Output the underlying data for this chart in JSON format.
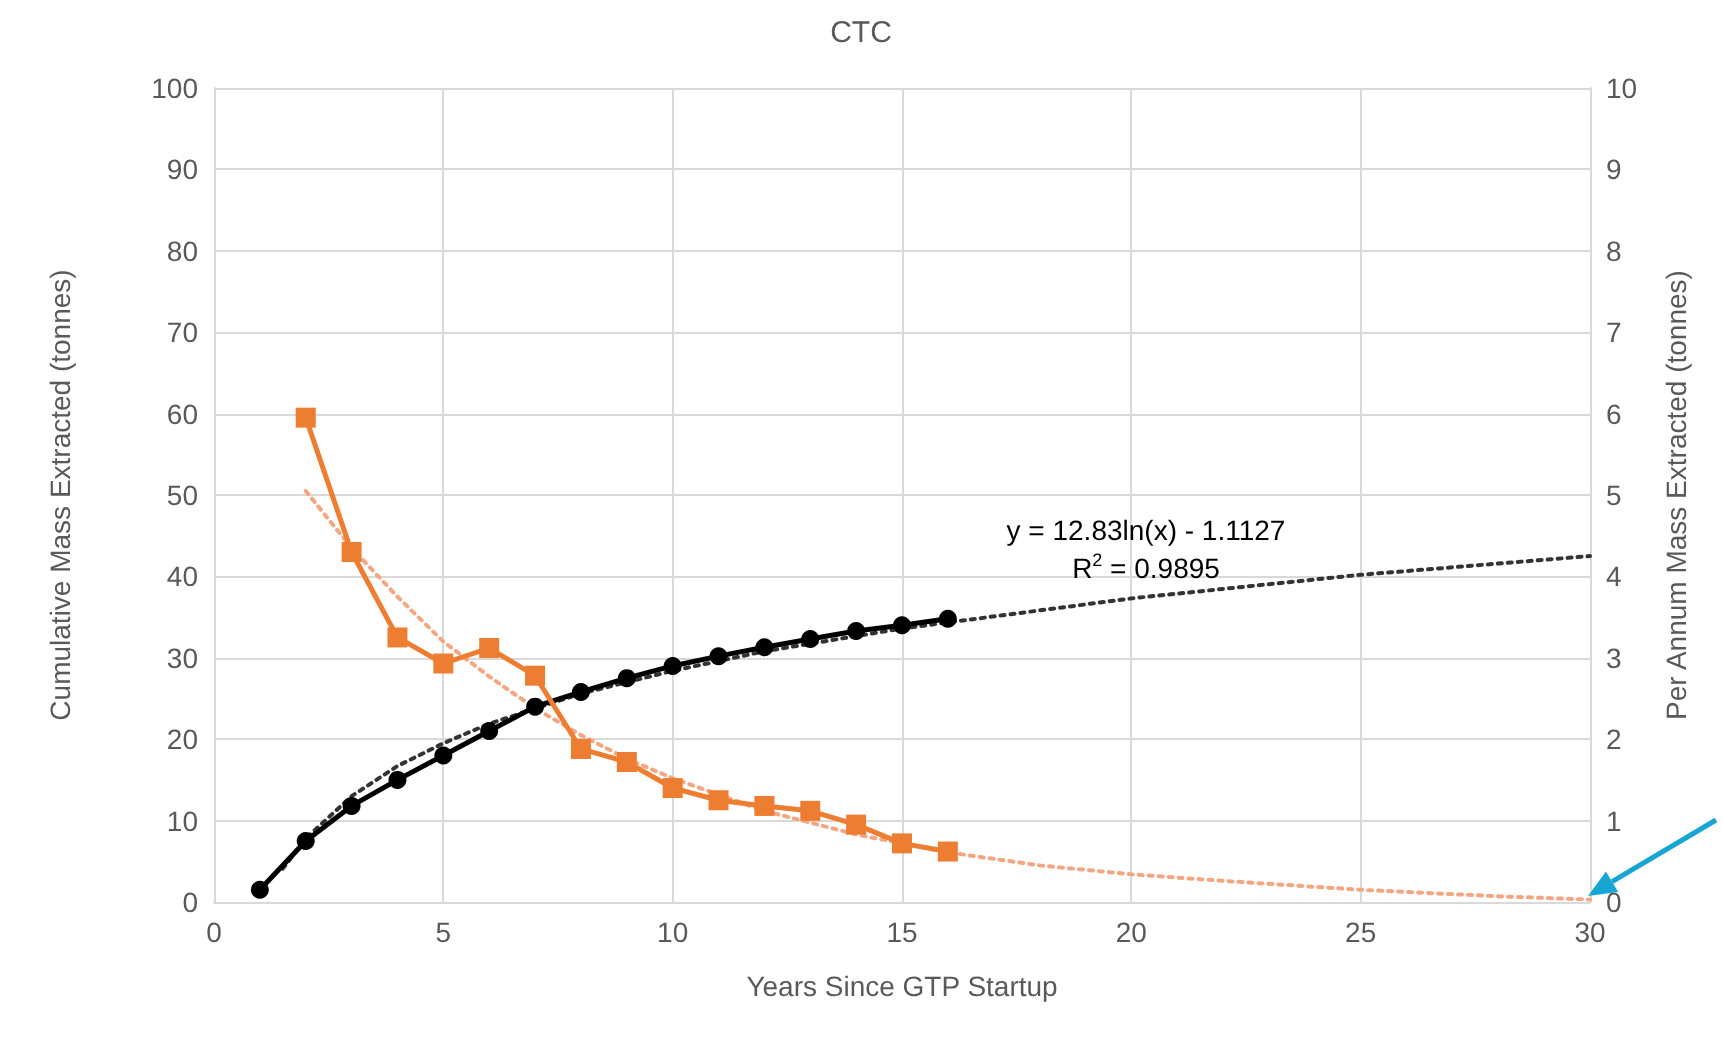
{
  "chart_data": {
    "type": "line",
    "title": "CTC",
    "xlabel": "Years Since GTP Startup",
    "ylabel": "Cumulative Mass Extracted (tonnes)",
    "y2label": "Per Annum Mass Extracted (tonnes)",
    "xlim": [
      0,
      30
    ],
    "xticks": [
      0,
      5,
      10,
      15,
      20,
      25,
      30
    ],
    "ylim": [
      0,
      100
    ],
    "yticks": [
      0,
      10,
      20,
      30,
      40,
      50,
      60,
      70,
      80,
      90,
      100
    ],
    "y2lim": [
      0,
      10
    ],
    "y2ticks": [
      0,
      1,
      2,
      3,
      4,
      5,
      6,
      7,
      8,
      9,
      10
    ],
    "grid": true,
    "series": [
      {
        "color": "#000000",
        "marker": "circle",
        "line_style": "solid",
        "x": [
          1,
          2,
          3,
          4,
          5,
          6,
          7,
          8,
          9,
          10,
          11,
          12,
          13,
          14,
          15,
          16
        ],
        "values": [
          1.5,
          7.5,
          11.8,
          15,
          18,
          21,
          24,
          25.8,
          27.5,
          29,
          30.2,
          31.3,
          32.3,
          33.3,
          34,
          34.8
        ]
      },
      {
        "color": "#ed7d31",
        "marker": "square",
        "line_style": "solid",
        "axis": "y2",
        "x": [
          2,
          3,
          4,
          5,
          6,
          7,
          8,
          9,
          10,
          11,
          12,
          13,
          14,
          15,
          16
        ],
        "values": [
          5.95,
          4.3,
          3.25,
          2.93,
          3.12,
          2.78,
          1.88,
          1.72,
          1.4,
          1.25,
          1.18,
          1.12,
          0.95,
          0.72,
          0.62
        ]
      },
      {
        "color": "#333333",
        "marker": "none",
        "line_style": "dotted",
        "x": [
          1.5,
          2,
          3,
          4,
          5,
          6,
          8,
          10,
          12,
          15,
          20,
          25,
          30
        ],
        "values": [
          4.1,
          7.8,
          13,
          16.7,
          19.5,
          21.9,
          25.6,
          28.4,
          30.8,
          33.6,
          37.3,
          40.2,
          42.5
        ]
      },
      {
        "color": "#f4a582",
        "marker": "none",
        "line_style": "dotted",
        "axis": "y2",
        "x": [
          2,
          3,
          4,
          5,
          6,
          7,
          8,
          9,
          10,
          12,
          14,
          16,
          18,
          20,
          22,
          25,
          28,
          30
        ],
        "values": [
          5.05,
          4.35,
          3.75,
          3.2,
          2.77,
          2.38,
          2.05,
          1.76,
          1.52,
          1.12,
          0.83,
          0.61,
          0.45,
          0.34,
          0.26,
          0.15,
          0.07,
          0.03
        ]
      }
    ],
    "annotations": [
      "y = 12.83ln(x) - 1.1127",
      "R$^{2}$ = 0.9895"
    ]
  }
}
